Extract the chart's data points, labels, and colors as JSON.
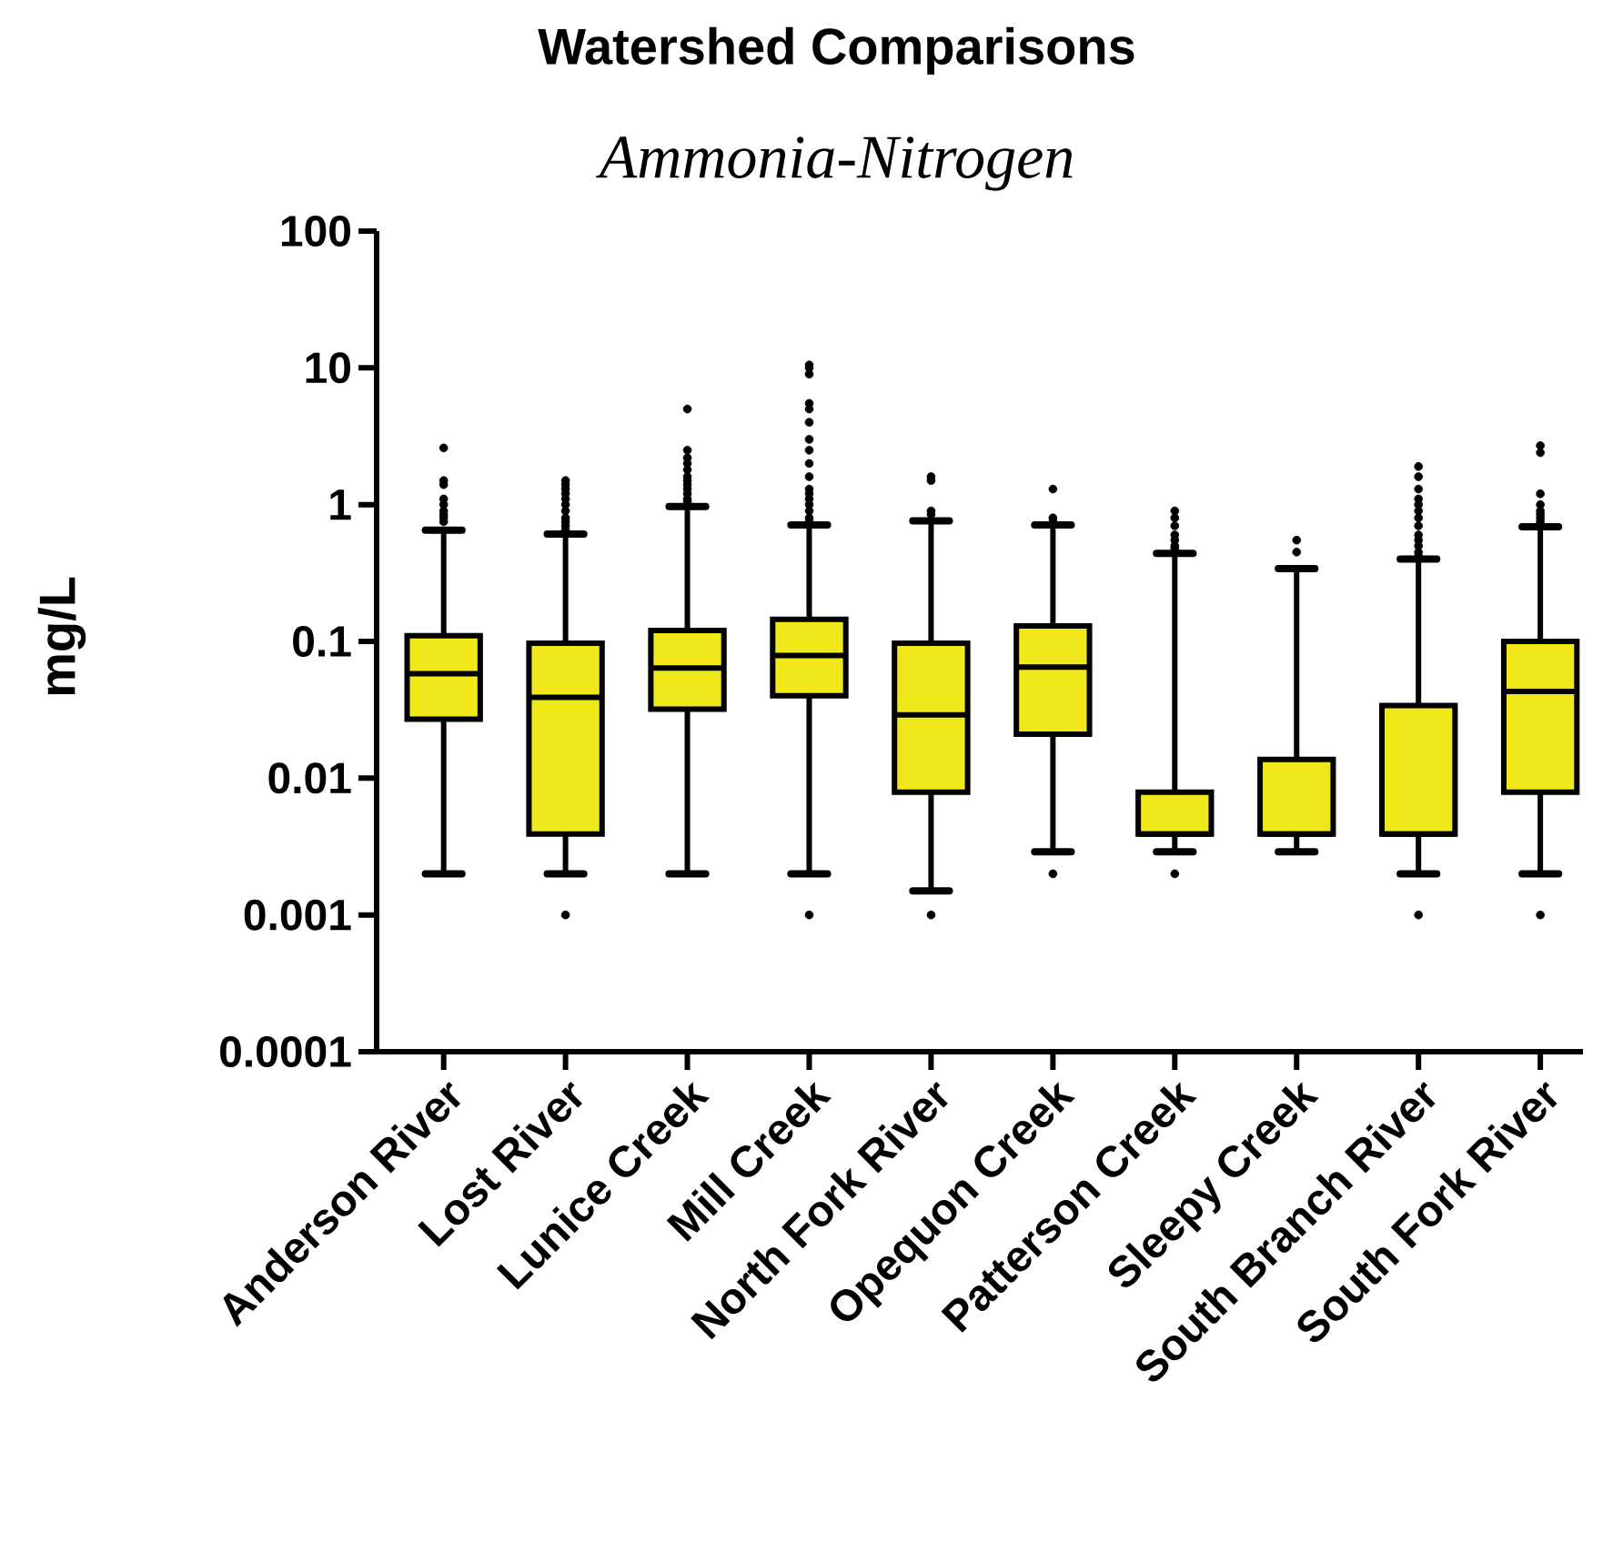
{
  "chart_data": {
    "type": "box",
    "title": "Watershed Comparisons",
    "subtitle": "Ammonia-Nitrogen",
    "ylabel": "mg/L",
    "categories": [
      "Anderson River",
      "Lost River",
      "Lunice Creek",
      "Mill Creek",
      "North Fork River",
      "Opequon Creek",
      "Patterson Creek",
      "Sleepy Creek",
      "South Branch River",
      "South Fork River"
    ],
    "color": "#f0e81a",
    "log": "y",
    "marker": "circle",
    "ylim": [
      0.0001,
      100
    ],
    "yticks": [
      0.0001,
      0.001,
      0.01,
      0.1,
      1,
      10,
      100
    ],
    "boxes": [
      {
        "low": 0.002,
        "q1": 0.027,
        "median": 0.058,
        "q3": 0.11,
        "high": 0.65,
        "outliers": [
          2.6,
          1.5,
          1.4,
          1.1,
          1.0,
          0.9,
          0.85,
          0.8,
          0.75
        ]
      },
      {
        "low": 0.002,
        "q1": 0.0039,
        "median": 0.039,
        "q3": 0.097,
        "high": 0.61,
        "outliers": [
          0.001,
          1.5,
          1.4,
          1.3,
          1.2,
          1.1,
          1.0,
          0.9,
          0.8,
          0.75,
          0.7,
          0.65
        ]
      },
      {
        "low": 0.002,
        "q1": 0.032,
        "median": 0.064,
        "q3": 0.12,
        "high": 0.97,
        "outliers": [
          5.0,
          2.5,
          2.2,
          2.0,
          1.8,
          1.6,
          1.5,
          1.4,
          1.3,
          1.2,
          1.1,
          1.05
        ]
      },
      {
        "low": 0.002,
        "q1": 0.04,
        "median": 0.079,
        "q3": 0.145,
        "high": 0.71,
        "outliers": [
          0.001,
          10.5,
          10,
          9,
          5.5,
          5,
          4,
          3,
          2.5,
          2,
          1.6,
          1.3,
          1.2,
          1.1,
          1.0,
          0.9,
          0.8,
          0.75
        ]
      },
      {
        "low": 0.0015,
        "q1": 0.0079,
        "median": 0.029,
        "q3": 0.097,
        "high": 0.76,
        "outliers": [
          0.001,
          1.6,
          1.5,
          0.9,
          0.85
        ]
      },
      {
        "low": 0.0029,
        "q1": 0.021,
        "median": 0.065,
        "q3": 0.13,
        "high": 0.71,
        "outliers": [
          0.002,
          1.3,
          0.8,
          0.75
        ]
      },
      {
        "low": 0.0029,
        "q1": 0.0039,
        "median": 0.0039,
        "q3": 0.0079,
        "high": 0.44,
        "outliers": [
          0.002,
          0.9,
          0.8,
          0.7,
          0.6,
          0.55,
          0.5,
          0.48
        ]
      },
      {
        "low": 0.0029,
        "q1": 0.0039,
        "median": 0.0039,
        "q3": 0.0137,
        "high": 0.34,
        "outliers": [
          0.55,
          0.45
        ]
      },
      {
        "low": 0.002,
        "q1": 0.0039,
        "median": 0.0039,
        "q3": 0.034,
        "high": 0.4,
        "outliers": [
          0.001,
          1.9,
          1.6,
          1.3,
          1.1,
          1.0,
          0.9,
          0.8,
          0.7,
          0.6,
          0.55,
          0.5,
          0.45,
          0.42
        ]
      },
      {
        "low": 0.002,
        "q1": 0.0079,
        "median": 0.043,
        "q3": 0.1,
        "high": 0.69,
        "outliers": [
          0.001,
          2.7,
          2.4,
          1.2,
          1.0,
          0.9,
          0.85,
          0.8,
          0.75
        ]
      }
    ]
  }
}
